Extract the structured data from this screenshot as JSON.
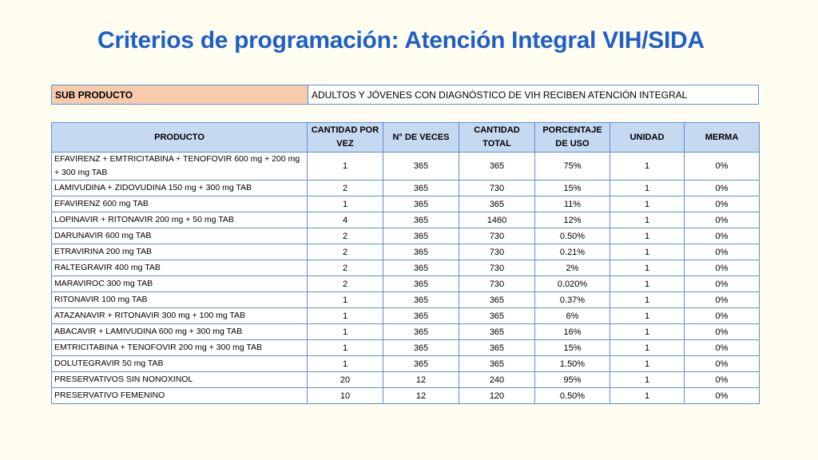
{
  "title": "Criterios de programación: Atención Integral VIH/SIDA",
  "sub": {
    "label": "SUB PRODUCTO",
    "value": "ADULTOS Y JÓVENES CON DIAGNÓSTICO  DE VIH RECIBEN ATENCIÓN INTEGRAL"
  },
  "headers": {
    "producto": "PRODUCTO",
    "cantidad": "CANTIDAD POR VEZ",
    "veces": "N°  DE VECES",
    "total": "CANTIDAD TOTAL",
    "porcentaje": "PORCENTAJE DE USO",
    "unidad": "UNIDAD",
    "merma": "MERMA"
  },
  "rows": [
    {
      "producto": "EFAVIRENZ + EMTRICITABINA + TENOFOVIR 600 mg + 200 mg + 300 mg TAB",
      "cantidad": "1",
      "veces": "365",
      "total": "365",
      "porcentaje": "75%",
      "unidad": "1",
      "merma": "0%"
    },
    {
      "producto": "LAMIVUDINA + ZIDOVUDINA 150 mg + 300 mg TAB",
      "cantidad": "2",
      "veces": "365",
      "total": "730",
      "porcentaje": "15%",
      "unidad": "1",
      "merma": "0%"
    },
    {
      "producto": "EFAVIRENZ 600 mg TAB",
      "cantidad": "1",
      "veces": "365",
      "total": "365",
      "porcentaje": "11%",
      "unidad": "1",
      "merma": "0%"
    },
    {
      "producto": "LOPINAVIR + RITONAVIR 200 mg + 50 mg TAB",
      "cantidad": "4",
      "veces": "365",
      "total": "1460",
      "porcentaje": "12%",
      "unidad": "1",
      "merma": "0%"
    },
    {
      "producto": "DARUNAVIR 600 mg TAB",
      "cantidad": "2",
      "veces": "365",
      "total": "730",
      "porcentaje": "0.50%",
      "unidad": "1",
      "merma": "0%"
    },
    {
      "producto": "ETRAVIRINA 200 mg TAB",
      "cantidad": "2",
      "veces": "365",
      "total": "730",
      "porcentaje": "0.21%",
      "unidad": "1",
      "merma": "0%"
    },
    {
      "producto": "RALTEGRAVIR 400 mg TAB",
      "cantidad": "2",
      "veces": "365",
      "total": "730",
      "porcentaje": "2%",
      "unidad": "1",
      "merma": "0%"
    },
    {
      "producto": "MARAVIROC 300 mg TAB",
      "cantidad": "2",
      "veces": "365",
      "total": "730",
      "porcentaje": "0.020%",
      "unidad": "1",
      "merma": "0%"
    },
    {
      "producto": "RITONAVIR 100 mg TAB",
      "cantidad": "1",
      "veces": "365",
      "total": "365",
      "porcentaje": "0.37%",
      "unidad": "1",
      "merma": "0%"
    },
    {
      "producto": "ATAZANAVIR + RITONAVIR 300 mg + 100 mg TAB",
      "cantidad": "1",
      "veces": "365",
      "total": "365",
      "porcentaje": "6%",
      "unidad": "1",
      "merma": "0%"
    },
    {
      "producto": "ABACAVIR + LAMIVUDINA 600 mg + 300 mg TAB",
      "cantidad": "1",
      "veces": "365",
      "total": "365",
      "porcentaje": "16%",
      "unidad": "1",
      "merma": "0%"
    },
    {
      "producto": "EMTRICITABINA + TENOFOVIR 200 mg + 300 mg TAB",
      "cantidad": "1",
      "veces": "365",
      "total": "365",
      "porcentaje": "15%",
      "unidad": "1",
      "merma": "0%"
    },
    {
      "producto": "DOLUTEGRAVIR 50 mg TAB",
      "cantidad": "1",
      "veces": "365",
      "total": "365",
      "porcentaje": "1.50%",
      "unidad": "1",
      "merma": "0%"
    },
    {
      "producto": "PRESERVATIVOS SIN NONOXINOL",
      "cantidad": "20",
      "veces": "12",
      "total": "240",
      "porcentaje": "95%",
      "unidad": "1",
      "merma": "0%"
    },
    {
      "producto": "PRESERVATIVO FEMENINO",
      "cantidad": "10",
      "veces": "12",
      "total": "120",
      "porcentaje": "0.50%",
      "unidad": "1",
      "merma": "0%"
    }
  ]
}
